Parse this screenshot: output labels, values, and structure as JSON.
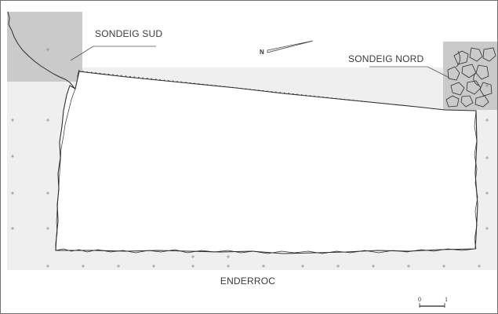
{
  "labels": {
    "sondeig_sud": "SONDEIG SUD",
    "sondeig_nord": "SONDEIG NORD",
    "enderroc": "ENDERROC",
    "north": "N"
  },
  "scale_bar": {
    "start": "0",
    "end": "1"
  },
  "colors": {
    "zone_fill": "#efefef",
    "sondeig_fill": "#cacaca",
    "outline": "#2e2e2e"
  }
}
